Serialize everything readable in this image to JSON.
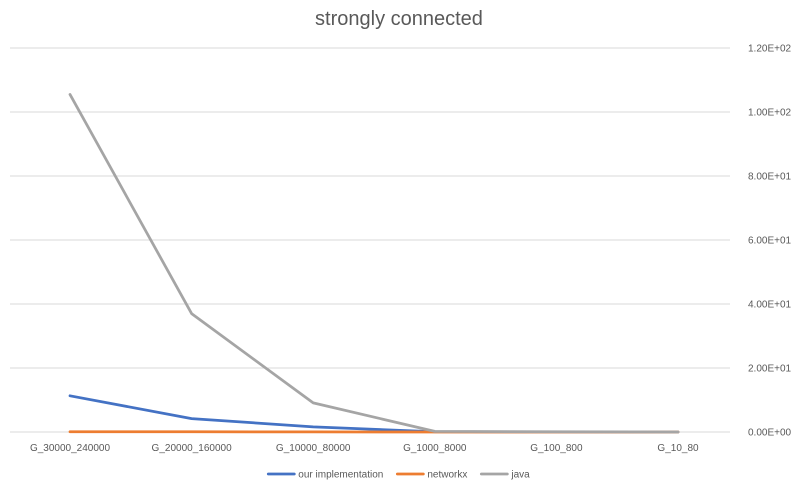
{
  "chart_data": {
    "type": "line",
    "title": "strongly connected",
    "categories": [
      "G_30000_240000",
      "G_20000_160000",
      "G_10000_80000",
      "G_1000_8000",
      "G_100_800",
      "G_10_80"
    ],
    "series": [
      {
        "name": "our implementation",
        "color": "#4472C4",
        "values": [
          11.3,
          4.2,
          1.6,
          0.1,
          0.02,
          0.01
        ]
      },
      {
        "name": "networkx",
        "color": "#ED7D31",
        "values": [
          0.08,
          0.06,
          0.04,
          0.01,
          0.005,
          0.001
        ]
      },
      {
        "name": "java",
        "color": "#A5A5A5",
        "values": [
          105.5,
          37.0,
          9.1,
          0.2,
          0.05,
          0.01
        ]
      }
    ],
    "y_axis": {
      "position": "right",
      "min": 0,
      "max": 120,
      "ticks": [
        0,
        20,
        40,
        60,
        80,
        100,
        120
      ],
      "tick_labels": [
        "0.00E+00",
        "2.00E+01",
        "4.00E+01",
        "6.00E+01",
        "8.00E+01",
        "1.00E+02",
        "1.20E+02"
      ]
    },
    "grid": true,
    "legend": "bottom",
    "colors": {
      "grid": "#D9D9D9",
      "text": "#595959"
    }
  }
}
